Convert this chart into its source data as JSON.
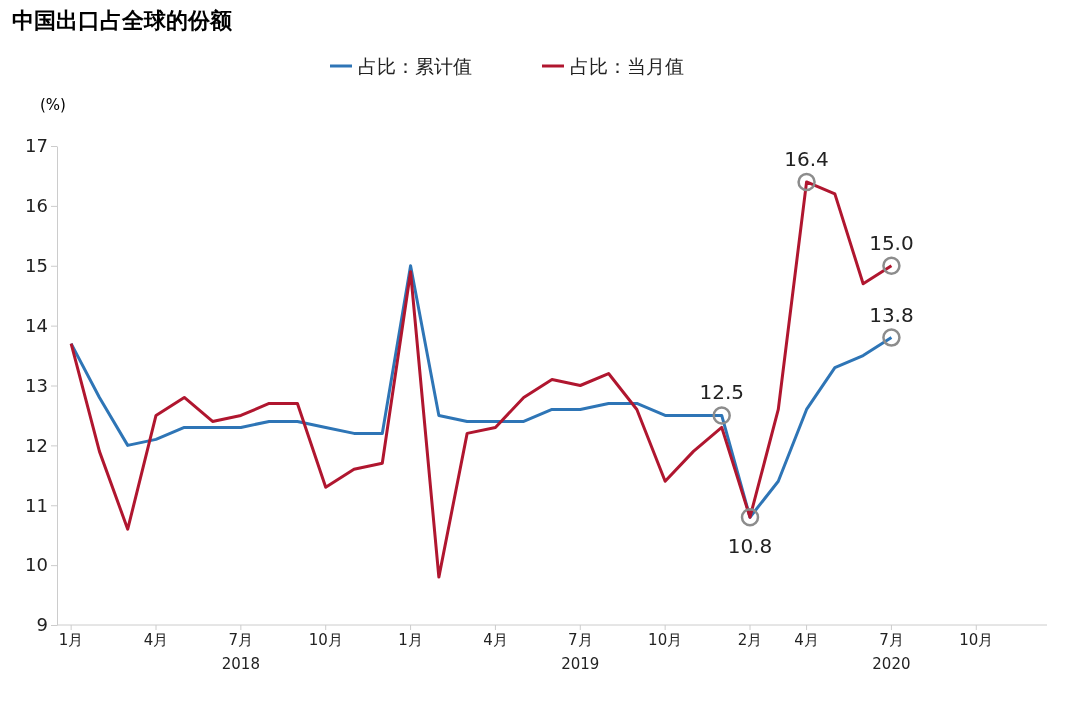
{
  "chart_data": {
    "type": "line",
    "title": "中国出口占全球的份额",
    "ylabel": "(%)",
    "categories": [
      "1月",
      null,
      null,
      "4月",
      null,
      null,
      "7月\n2018",
      null,
      null,
      "10月",
      null,
      null,
      "1月",
      null,
      null,
      "4月",
      null,
      null,
      "7月\n2019",
      null,
      null,
      "10月",
      null,
      null,
      "2月",
      null,
      "4月",
      null,
      null,
      "7月\n2020",
      null,
      null,
      "10月",
      null,
      null
    ],
    "ylim": [
      9,
      17
    ],
    "yticks": [
      9,
      10,
      11,
      12,
      13,
      14,
      15,
      16,
      17
    ],
    "grid": false,
    "legend": "top",
    "marker": "none",
    "line_style": "solid",
    "series": [
      {
        "name": "占比：累计值",
        "color": "#2e75b6",
        "values": [
          13.7,
          12.8,
          12.0,
          12.1,
          12.3,
          12.3,
          12.3,
          12.4,
          12.4,
          12.3,
          12.2,
          12.2,
          15.0,
          12.5,
          12.4,
          12.4,
          12.4,
          12.6,
          12.6,
          12.7,
          12.7,
          12.5,
          12.5,
          12.5,
          10.8,
          11.4,
          12.6,
          13.3,
          13.5,
          13.8,
          null,
          null,
          null,
          null,
          null
        ],
        "value_labels": [
          null,
          null,
          null,
          null,
          null,
          null,
          null,
          null,
          null,
          null,
          null,
          null,
          null,
          null,
          null,
          null,
          null,
          null,
          null,
          null,
          null,
          null,
          null,
          "12.5",
          "10.8",
          null,
          null,
          null,
          null,
          "13.8",
          null,
          null,
          null,
          null,
          null
        ]
      },
      {
        "name": "占比：当月值",
        "color": "#b0162f",
        "values": [
          13.7,
          11.9,
          10.6,
          12.5,
          12.8,
          12.4,
          12.5,
          12.7,
          12.7,
          11.3,
          11.6,
          11.7,
          14.9,
          9.8,
          12.2,
          12.3,
          12.8,
          13.1,
          13.0,
          13.2,
          12.6,
          11.4,
          11.9,
          12.3,
          10.8,
          12.6,
          16.4,
          16.2,
          14.7,
          15.0,
          null,
          null,
          null,
          null,
          null
        ],
        "value_labels": [
          null,
          null,
          null,
          null,
          null,
          null,
          null,
          null,
          null,
          null,
          null,
          null,
          null,
          null,
          null,
          null,
          null,
          null,
          null,
          null,
          null,
          null,
          null,
          null,
          null,
          null,
          "16.4",
          null,
          null,
          "15.0",
          null,
          null,
          null,
          null,
          null
        ]
      }
    ]
  }
}
